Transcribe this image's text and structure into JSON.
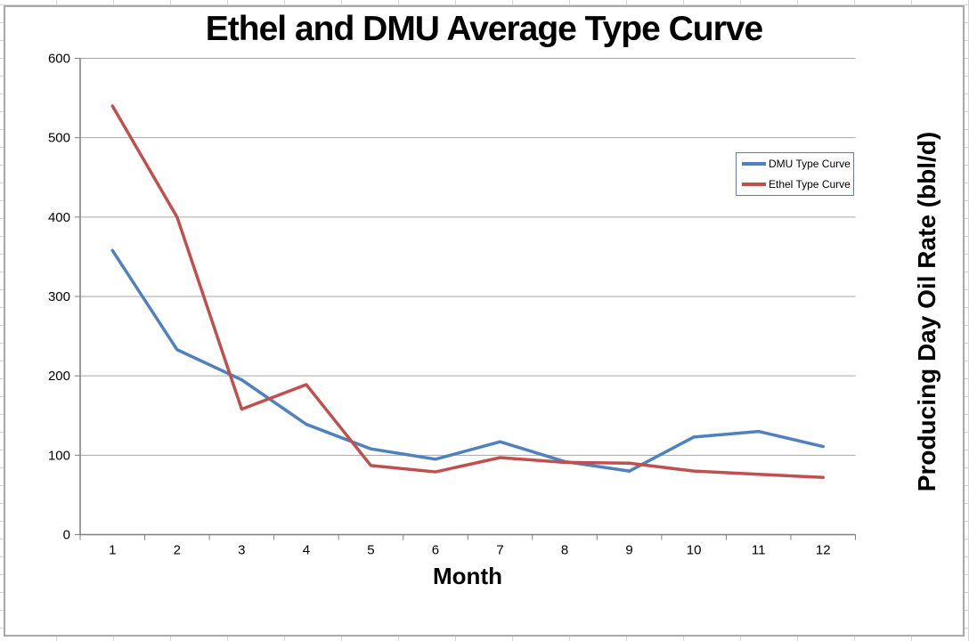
{
  "chart": {
    "title": "Ethel and DMU Average Type Curve",
    "x_axis_title": "Month",
    "y_axis_title": "Producing Day Oil Rate (bbl/d)"
  },
  "chart_data": {
    "type": "line",
    "title": "Ethel and DMU Average Type Curve",
    "xlabel": "Month",
    "ylabel": "Producing Day Oil Rate (bbl/d)",
    "categories": [
      "1",
      "2",
      "3",
      "4",
      "5",
      "6",
      "7",
      "8",
      "9",
      "10",
      "11",
      "12"
    ],
    "series": [
      {
        "name": "DMU Type Curve",
        "color": "#4F81BD",
        "values": [
          358,
          233,
          195,
          139,
          108,
          95,
          117,
          92,
          80,
          123,
          130,
          111
        ]
      },
      {
        "name": "Ethel Type Curve",
        "color": "#C0504D",
        "values": [
          540,
          400,
          158,
          189,
          87,
          79,
          97,
          91,
          90,
          80,
          76,
          72
        ]
      }
    ],
    "ylim": [
      0,
      600
    ],
    "yticks": [
      0,
      100,
      200,
      300,
      400,
      500,
      600
    ],
    "grid": true,
    "legend_position": "inside-right",
    "colors": {
      "gridline": "#A6A6A6",
      "axis": "#7F7F7F",
      "legend_border": "#4F81BD",
      "chart_border": "#A8A8A8",
      "sheet_gridline": "#D4D4D4",
      "background": "#FFFFFF"
    }
  }
}
